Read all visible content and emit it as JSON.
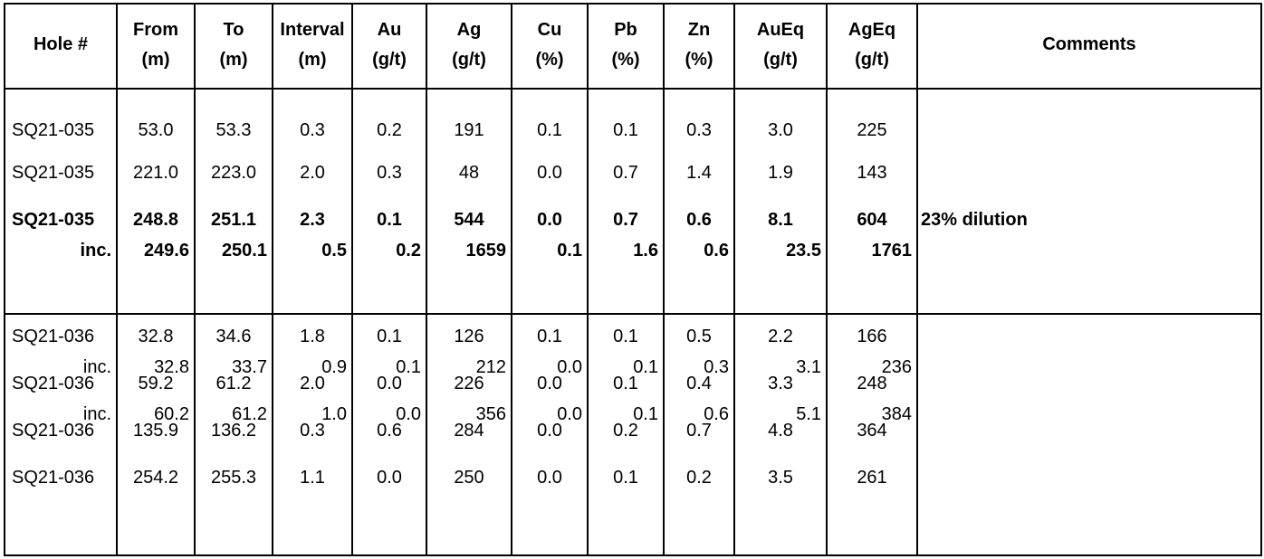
{
  "headers": [
    [
      "Hole #"
    ],
    [
      "From",
      "(m)"
    ],
    [
      "To",
      "(m)"
    ],
    [
      "Interval",
      "(m)"
    ],
    [
      "Au",
      "(g/t)"
    ],
    [
      "Ag",
      "(g/t)"
    ],
    [
      "Cu",
      "(%)"
    ],
    [
      "Pb",
      "(%)"
    ],
    [
      "Zn",
      "(%)"
    ],
    [
      "AuEq",
      "(g/t)"
    ],
    [
      "AgEq",
      "(g/t)"
    ],
    [
      "Comments"
    ]
  ],
  "groups": [
    {
      "rows": [
        {
          "main": [
            "SQ21-035",
            "53.0",
            "53.3",
            "0.3",
            "0.2",
            "191",
            "0.1",
            "0.1",
            "0.3",
            "3.0",
            "225"
          ],
          "comment": "",
          "bold": false,
          "inc": null
        },
        {
          "main": [
            "SQ21-035",
            "221.0",
            "223.0",
            "2.0",
            "0.3",
            "48",
            "0.0",
            "0.7",
            "1.4",
            "1.9",
            "143"
          ],
          "comment": "",
          "bold": false,
          "inc": null
        },
        {
          "main": [
            "SQ21-035",
            "248.8",
            "251.1",
            "2.3",
            "0.1",
            "544",
            "0.0",
            "0.7",
            "0.6",
            "8.1",
            "604"
          ],
          "comment": "23% dilution",
          "bold": true,
          "inc": [
            "inc.",
            "249.6",
            "250.1",
            "0.5",
            "0.2",
            "1659",
            "0.1",
            "1.6",
            "0.6",
            "23.5",
            "1761"
          ]
        }
      ]
    },
    {
      "rows": [
        {
          "main": [
            "SQ21-036",
            "32.8",
            "34.6",
            "1.8",
            "0.1",
            "126",
            "0.1",
            "0.1",
            "0.5",
            "2.2",
            "166"
          ],
          "comment": "",
          "bold": false,
          "inc": [
            "inc.",
            "32.8",
            "33.7",
            "0.9",
            "0.1",
            "212",
            "0.0",
            "0.1",
            "0.3",
            "3.1",
            "236"
          ]
        },
        {
          "main": [
            "SQ21-036",
            "59.2",
            "61.2",
            "2.0",
            "0.0",
            "226",
            "0.0",
            "0.1",
            "0.4",
            "3.3",
            "248"
          ],
          "comment": "",
          "bold": false,
          "inc": [
            "inc.",
            "60.2",
            "61.2",
            "1.0",
            "0.0",
            "356",
            "0.0",
            "0.1",
            "0.6",
            "5.1",
            "384"
          ]
        },
        {
          "main": [
            "SQ21-036",
            "135.9",
            "136.2",
            "0.3",
            "0.6",
            "284",
            "0.0",
            "0.2",
            "0.7",
            "4.8",
            "364"
          ],
          "comment": "",
          "bold": false,
          "inc": null
        },
        {
          "main": [
            "SQ21-036",
            "254.2",
            "255.3",
            "1.1",
            "0.0",
            "250",
            "0.0",
            "0.1",
            "0.2",
            "3.5",
            "261"
          ],
          "comment": "",
          "bold": false,
          "inc": null
        }
      ]
    }
  ]
}
